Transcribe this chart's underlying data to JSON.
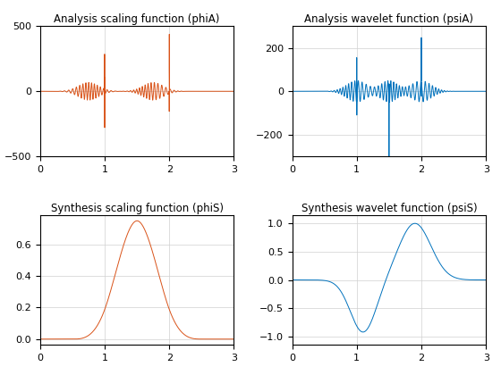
{
  "titles": [
    "Analysis scaling function (phiA)",
    "Analysis wavelet function (psiA)",
    "Synthesis scaling function (phiS)",
    "Synthesis wavelet function (psiS)"
  ],
  "colors": [
    "#D95319",
    "#0072BD",
    "#D95319",
    "#0072BD"
  ],
  "xlim": [
    0,
    3
  ],
  "grid": true,
  "figsize": [
    5.6,
    4.2
  ],
  "dpi": 100,
  "background_color": "#ffffff",
  "phiA_ylim": [
    -500,
    500
  ],
  "psiA_ylim": [
    -300,
    300
  ],
  "phiA_yticks": [
    -500,
    0,
    500
  ],
  "psiA_yticks": [
    -200,
    0,
    200
  ],
  "phiS_yticks": [
    0,
    0.2,
    0.4,
    0.6
  ],
  "psiS_yticks": [
    -1,
    -0.5,
    0,
    0.5,
    1
  ],
  "xticks": [
    0,
    1,
    2,
    3
  ]
}
